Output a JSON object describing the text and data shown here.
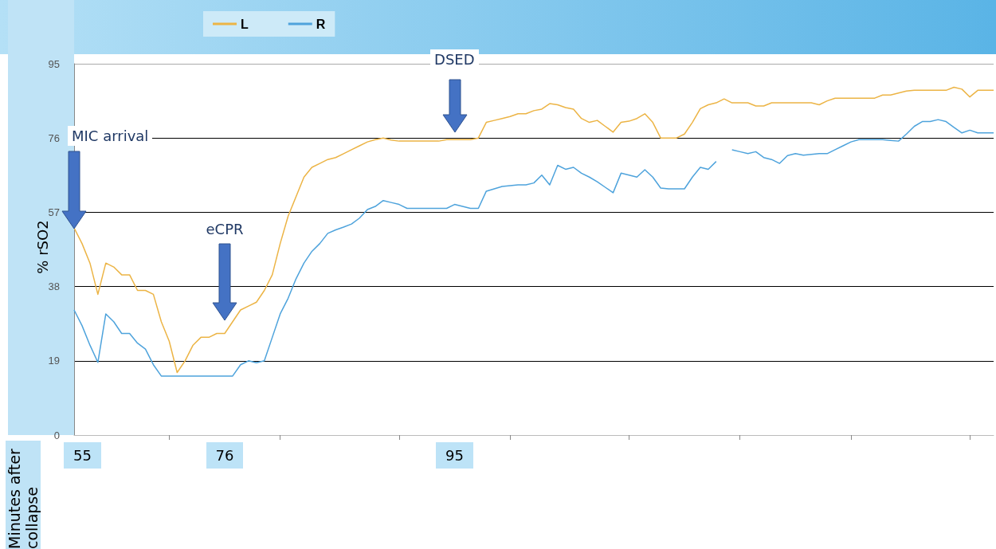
{
  "chart_data": {
    "type": "line",
    "ylabel": "% rSO2",
    "categories": [
      null,
      null,
      null,
      null,
      null,
      null,
      null,
      null,
      null,
      null,
      null,
      null,
      null,
      null,
      null,
      null,
      null,
      null,
      null,
      null,
      null,
      null,
      null,
      null,
      null,
      null,
      null,
      null,
      null,
      null,
      null,
      null,
      null,
      null,
      null,
      null,
      null,
      null,
      null,
      null,
      null,
      null,
      null,
      null,
      null,
      null,
      null,
      null,
      null,
      null,
      null,
      null,
      null,
      null,
      null,
      null,
      null,
      null,
      null,
      null,
      null,
      null,
      null,
      null,
      null,
      null,
      null,
      null,
      null,
      null,
      null,
      null,
      null,
      null,
      null,
      null,
      null,
      null,
      null,
      null,
      null,
      null,
      null,
      null,
      null,
      null,
      null,
      null,
      null,
      null,
      null,
      null,
      null,
      null,
      null,
      null,
      null,
      null,
      null,
      null,
      null,
      null,
      null,
      null,
      null,
      null,
      null,
      null,
      null,
      null,
      null,
      null,
      null,
      null,
      null,
      null,
      null
    ],
    "series": [
      {
        "name": "L",
        "color": "#ecb445",
        "values": [
          53,
          49,
          44,
          36,
          44,
          43,
          41,
          41,
          37,
          37,
          36,
          29,
          24,
          16,
          19,
          23,
          25,
          25,
          26,
          26,
          29,
          32,
          33,
          34,
          37,
          41,
          49,
          56,
          61,
          66,
          68.5,
          69.5,
          70.5,
          71,
          72,
          73,
          74,
          75,
          75.6,
          76,
          75.5,
          75.2,
          75.2,
          75.2,
          75.2,
          75.2,
          75.2,
          75.6,
          75.6,
          75.6,
          75.6,
          76,
          80,
          80.5,
          81,
          81.5,
          82.2,
          82.2,
          83,
          83.4,
          84.8,
          84.5,
          83.8,
          83.4,
          81,
          80,
          80.5,
          79,
          77.5,
          80,
          80.3,
          81,
          82.2,
          80,
          76,
          76,
          76,
          77,
          80,
          83.5,
          84.5,
          85,
          86,
          85,
          85,
          85,
          84.2,
          84.2,
          85,
          85,
          85,
          85,
          85,
          85,
          84.5,
          85.5,
          86.2,
          86.2,
          86.2,
          86.2,
          86.2,
          86.2,
          87,
          87,
          87.5,
          88,
          88.2,
          88.2,
          88.2,
          88.2,
          88.2,
          89,
          88.5,
          86.5,
          88.2,
          88.2,
          88.2
        ]
      },
      {
        "name": "R",
        "color": "#4ea3dc",
        "values": [
          32,
          28,
          23,
          18.6,
          31,
          29,
          26,
          26,
          23.5,
          22,
          18,
          15.1,
          15.1,
          15.1,
          15.1,
          15.1,
          15.1,
          15.1,
          15.1,
          15.1,
          15.1,
          18,
          19,
          18.5,
          19,
          25,
          31,
          35,
          40,
          44,
          47,
          49,
          51.6,
          52.5,
          53.2,
          54,
          55.5,
          57.7,
          58.5,
          60,
          59.5,
          59,
          58,
          58,
          58,
          58,
          58,
          58,
          59,
          58.5,
          58,
          58,
          62.4,
          63,
          63.6,
          63.8,
          64,
          64,
          64.5,
          66.5,
          64,
          69,
          68,
          68.5,
          67,
          66,
          64.8,
          63.4,
          62,
          67,
          66.5,
          66,
          67.9,
          66,
          63.2,
          63,
          63,
          63,
          66,
          68.5,
          68,
          70,
          null,
          73,
          72.5,
          72,
          72.5,
          71,
          70.5,
          69.5,
          71.5,
          72,
          71.6,
          71.8,
          72,
          72,
          73,
          74,
          75,
          75.6,
          75.6,
          75.6,
          75.6,
          75.4,
          75.2,
          77,
          79,
          80.2,
          80.2,
          80.7,
          80.2,
          78.7,
          77.3,
          78,
          77.3,
          77.3,
          77.3
        ]
      }
    ],
    "ylim": [
      0,
      95
    ],
    "yticks": [
      0,
      19,
      38,
      57,
      76,
      95
    ],
    "grid": "y",
    "legend": "top",
    "marker": "none",
    "annotations": [
      "MIC arrival",
      "eCPR",
      "DSED",
      "55",
      "76",
      "95",
      "Minutes after collapse"
    ]
  }
}
